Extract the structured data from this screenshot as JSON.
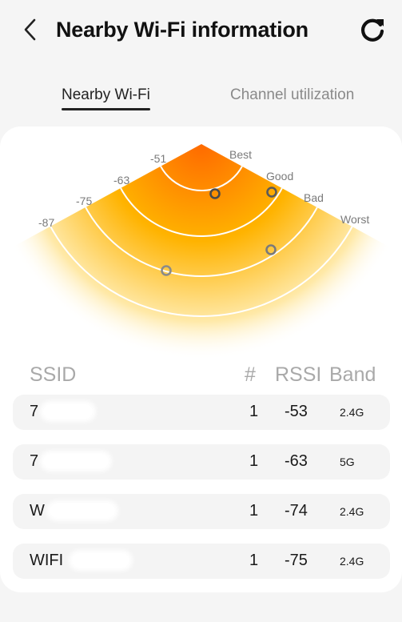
{
  "header": {
    "back_icon": "chevron-left-icon",
    "title": "Nearby Wi-Fi information",
    "refresh_icon": "refresh-icon"
  },
  "tabs": [
    {
      "label": "Nearby Wi-Fi",
      "active": true
    },
    {
      "label": "Channel utilization",
      "active": false
    }
  ],
  "radar": {
    "ring_labels": [
      "-51",
      "-63",
      "-75",
      "-87"
    ],
    "quality_labels": [
      "Best",
      "Good",
      "Bad",
      "Worst"
    ],
    "gradient_colors": [
      "#ff6a00",
      "#ffb300",
      "#ffe9a8"
    ],
    "networks_rssi": [
      -53,
      -63,
      -74,
      -75
    ]
  },
  "list": {
    "headers": {
      "ssid": "SSID",
      "num": "#",
      "rssi": "RSSI",
      "band": "Band"
    },
    "rows": [
      {
        "ssid": "7",
        "num": "1",
        "rssi": "-53",
        "band": "2.4G"
      },
      {
        "ssid": "7",
        "num": "1",
        "rssi": "-63",
        "band": "5G"
      },
      {
        "ssid": "W",
        "num": "1",
        "rssi": "-74",
        "band": "2.4G"
      },
      {
        "ssid": "WIFI",
        "num": "1",
        "rssi": "-75",
        "band": "2.4G"
      }
    ]
  }
}
